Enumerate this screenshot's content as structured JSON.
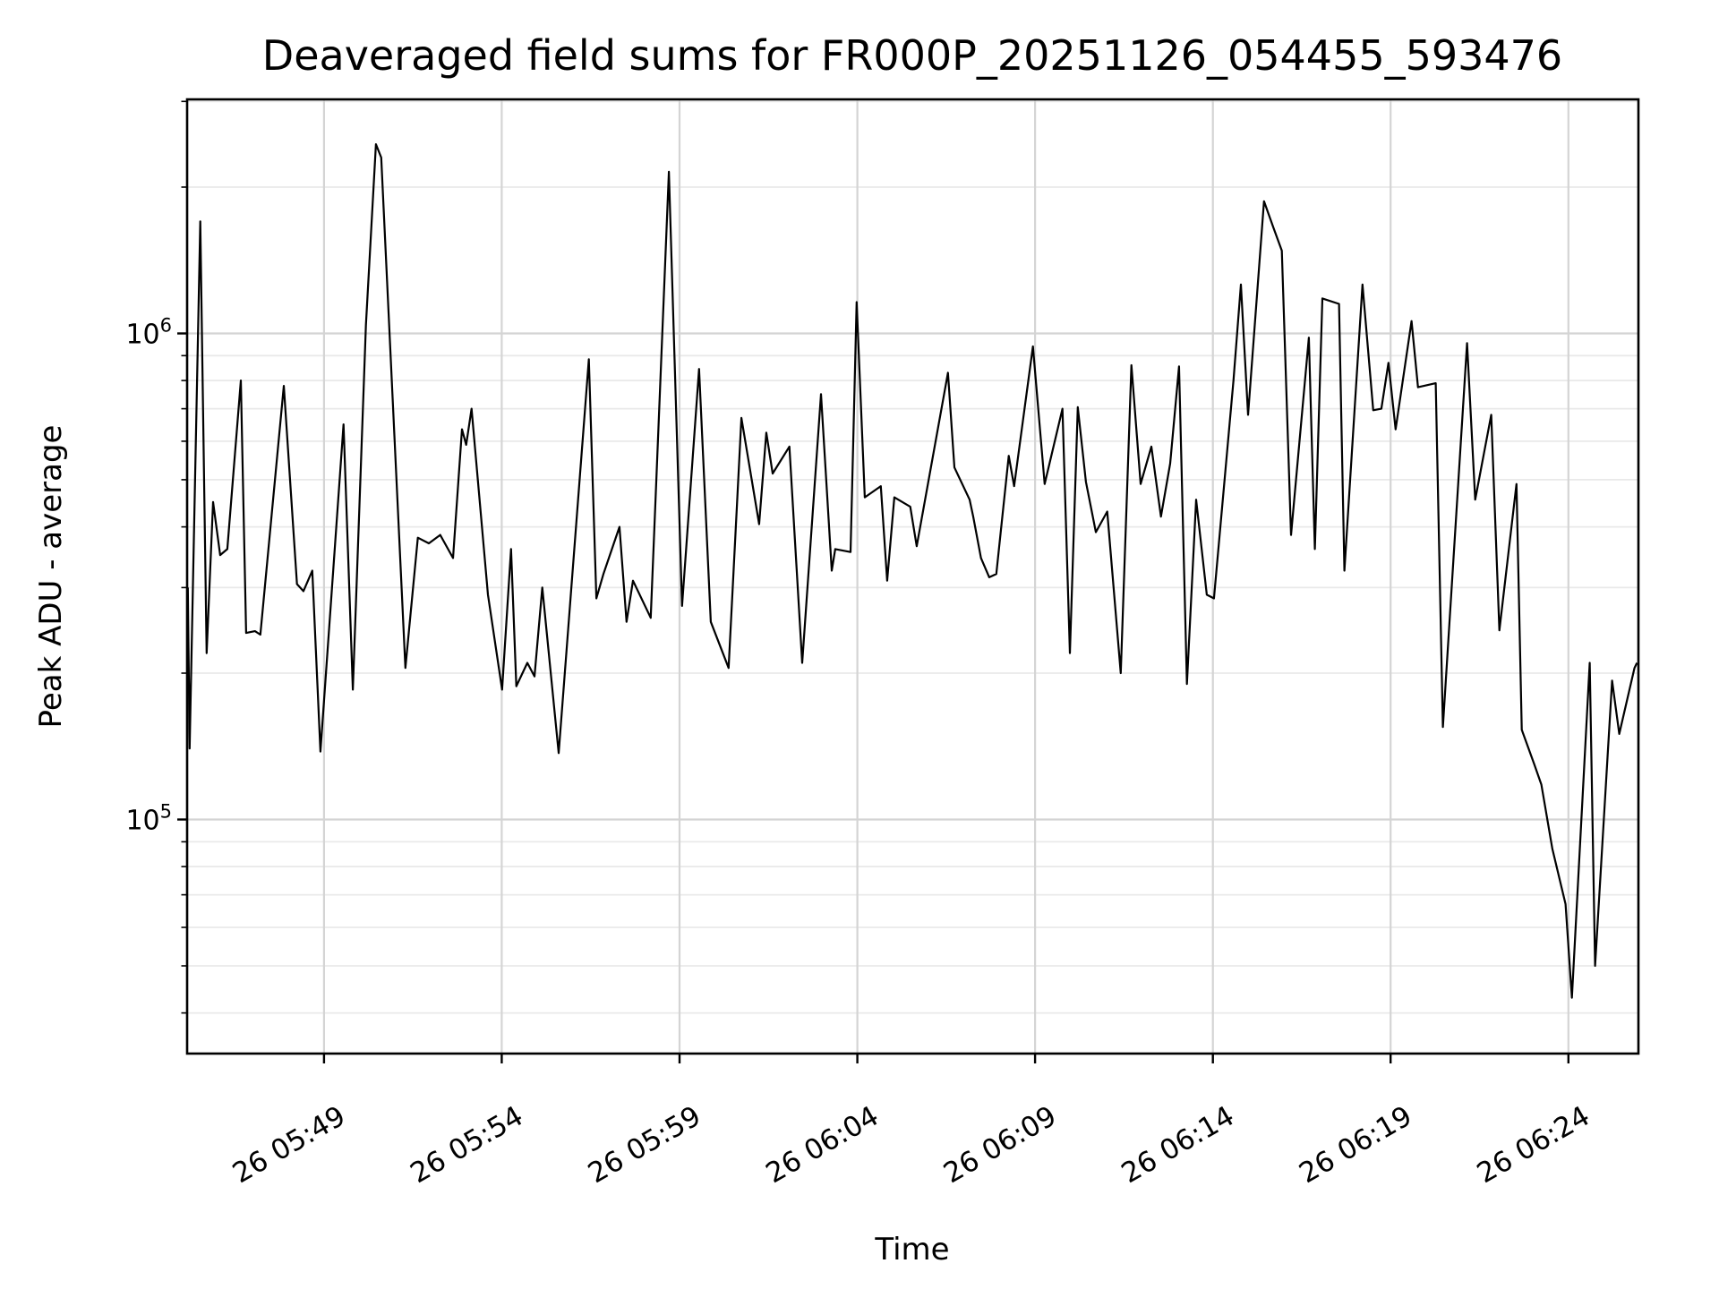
{
  "page": {
    "background": "#ffffff"
  },
  "chart_data": {
    "type": "line",
    "title": "Deaveraged field sums for FR000P_20251126_054455_593476",
    "xlabel": "Time",
    "ylabel": "Peak ADU - average",
    "y_scale": "log",
    "grid": true,
    "legend": null,
    "line_color": "#000000",
    "grid_major_color": "#d4d4d4",
    "grid_minor_color": "#e9e9e9",
    "ylim": [
      33000,
      3030000
    ],
    "xlim_minutes": [
      0.15,
      40.97
    ],
    "x_time_origin": "26 05:45",
    "x_ticks": [
      {
        "t": 4,
        "label": "26 05:49"
      },
      {
        "t": 9,
        "label": "26 05:54"
      },
      {
        "t": 14,
        "label": "26 05:59"
      },
      {
        "t": 19,
        "label": "26 06:04"
      },
      {
        "t": 24,
        "label": "26 06:09"
      },
      {
        "t": 29,
        "label": "26 06:14"
      },
      {
        "t": 34,
        "label": "26 06:19"
      },
      {
        "t": 39,
        "label": "26 06:24"
      }
    ],
    "y_major_ticks": [
      {
        "v": 1000000,
        "base": "10",
        "exp": "6"
      },
      {
        "v": 100000,
        "base": "10",
        "exp": "5"
      }
    ],
    "series": [
      {
        "name": "deaveraged field sums",
        "x_minutes": [
          0.17,
          0.22,
          0.52,
          0.7,
          0.88,
          1.08,
          1.28,
          1.66,
          1.81,
          2.06,
          2.21,
          2.87,
          3.24,
          3.42,
          3.67,
          3.9,
          4.55,
          4.81,
          5.18,
          5.46,
          5.61,
          6.29,
          6.64,
          6.95,
          7.27,
          7.63,
          7.88,
          8.0,
          8.15,
          8.61,
          9.01,
          9.26,
          9.41,
          9.72,
          9.92,
          10.14,
          10.6,
          11.45,
          11.66,
          11.86,
          12.31,
          12.51,
          12.69,
          13.19,
          13.7,
          14.07,
          14.55,
          14.88,
          15.38,
          15.74,
          16.24,
          16.44,
          16.62,
          17.09,
          17.45,
          17.98,
          18.28,
          18.38,
          18.81,
          18.98,
          19.21,
          19.66,
          19.84,
          20.04,
          20.49,
          20.67,
          21.55,
          21.73,
          22.16,
          22.26,
          22.48,
          22.71,
          22.91,
          23.26,
          23.41,
          23.94,
          24.27,
          24.77,
          24.98,
          25.2,
          25.43,
          25.71,
          26.03,
          26.41,
          26.71,
          26.97,
          27.27,
          27.54,
          27.8,
          28.05,
          28.27,
          28.53,
          28.83,
          29.03,
          29.58,
          29.79,
          29.99,
          30.44,
          30.69,
          30.94,
          31.2,
          31.7,
          31.87,
          32.08,
          32.55,
          32.7,
          33.21,
          33.51,
          33.74,
          33.94,
          34.14,
          34.59,
          34.77,
          35.27,
          35.47,
          36.15,
          36.38,
          36.83,
          37.06,
          37.54,
          37.69,
          38.04,
          38.24,
          38.55,
          38.92,
          39.1,
          39.6,
          39.75,
          40.23,
          40.43,
          40.86,
          40.93
        ],
        "values": [
          300000,
          140000,
          1700000,
          220000,
          450000,
          350000,
          360000,
          800000,
          242000,
          244000,
          240000,
          780000,
          305000,
          295000,
          325000,
          138000,
          650000,
          185000,
          1040000,
          2450000,
          2300000,
          205000,
          380000,
          370000,
          385000,
          345000,
          635000,
          590000,
          700000,
          290000,
          185000,
          360000,
          188000,
          210000,
          197000,
          300000,
          137000,
          885000,
          285000,
          320000,
          400000,
          255000,
          310000,
          260000,
          2150000,
          275000,
          845000,
          255000,
          205000,
          670000,
          405000,
          625000,
          515000,
          585000,
          210000,
          750000,
          325000,
          360000,
          355000,
          1160000,
          460000,
          485000,
          310000,
          460000,
          440000,
          365000,
          830000,
          530000,
          455000,
          420000,
          345000,
          315000,
          320000,
          560000,
          485000,
          940000,
          490000,
          700000,
          220000,
          705000,
          495000,
          390000,
          430000,
          200000,
          860000,
          490000,
          585000,
          420000,
          540000,
          855000,
          190000,
          455000,
          290000,
          285000,
          800000,
          1260000,
          680000,
          1870000,
          1660000,
          1480000,
          385000,
          980000,
          360000,
          1180000,
          1150000,
          325000,
          1260000,
          695000,
          700000,
          870000,
          635000,
          1060000,
          775000,
          790000,
          155000,
          955000,
          455000,
          680000,
          245000,
          490000,
          153000,
          130000,
          118000,
          87000,
          67000,
          43000,
          210000,
          50000,
          193000,
          150000,
          205000,
          210000
        ]
      }
    ]
  }
}
